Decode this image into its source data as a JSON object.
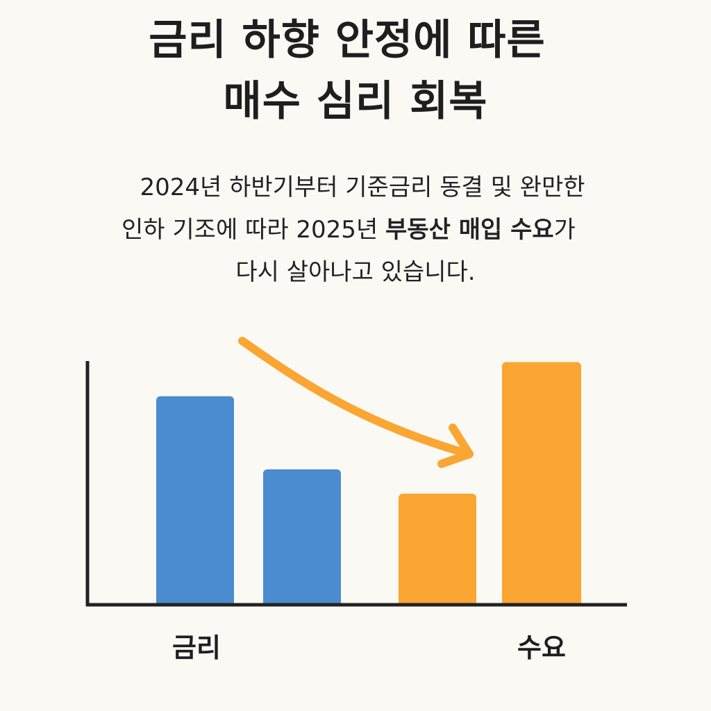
{
  "title": {
    "line1": "금리 하향 안정에 따른",
    "line2": "매수 심리 회복"
  },
  "body": {
    "line1": "2024년 하반기부터 기준금리 동결 및 완만한",
    "line2_before": "인하 기조에 따라 2025년 ",
    "line2_bold": "부동산 매입 수요",
    "line2_after": "가",
    "line3": "다시 살아나고 있습니다."
  },
  "colors": {
    "rate_bar": "#4a8ccf",
    "demand_bar": "#fba533",
    "arrow": "#fba533",
    "axis": "#222222"
  },
  "chart_data": {
    "type": "bar",
    "groups": [
      {
        "label": "금리",
        "values": [
          85,
          55
        ],
        "color": "#4a8ccf"
      },
      {
        "label": "수요",
        "values": [
          45,
          99
        ],
        "color": "#fba533"
      }
    ],
    "ylim": [
      0,
      100
    ],
    "annotation": {
      "type": "arrow",
      "from": "금리",
      "to": "수요",
      "color": "#fba533"
    },
    "grid": false,
    "y_tick_labels": false
  }
}
